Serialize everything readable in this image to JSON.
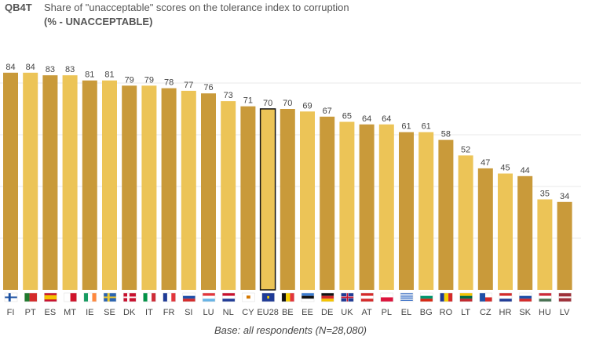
{
  "header": {
    "code": "QB4T",
    "title": "Share of \"unacceptable\" scores on the tolerance index to corruption",
    "subtitle": "(% - UNACCEPTABLE)"
  },
  "footer": {
    "base": "Base: all respondents (N=28,080)"
  },
  "colors": {
    "dark": "#c99a3a",
    "light": "#ecc457",
    "grid": "#e8e8e8"
  },
  "chart_data": {
    "type": "bar",
    "title": "Share of \"unacceptable\" scores on the tolerance index to corruption",
    "subtitle": "(% - UNACCEPTABLE)",
    "categories": [
      "FI",
      "PT",
      "ES",
      "MT",
      "IE",
      "SE",
      "DK",
      "IT",
      "FR",
      "SI",
      "LU",
      "NL",
      "CY",
      "EU28",
      "BE",
      "EE",
      "DE",
      "UK",
      "AT",
      "PL",
      "EL",
      "BG",
      "RO",
      "LT",
      "CZ",
      "HR",
      "SK",
      "HU",
      "LV"
    ],
    "values": [
      84,
      84,
      83,
      83,
      81,
      81,
      79,
      79,
      78,
      77,
      76,
      73,
      71,
      70,
      70,
      69,
      67,
      65,
      64,
      64,
      61,
      61,
      58,
      52,
      47,
      45,
      44,
      35,
      34
    ],
    "highlight": "EU28",
    "ylim": [
      0,
      100
    ],
    "grid": true
  }
}
